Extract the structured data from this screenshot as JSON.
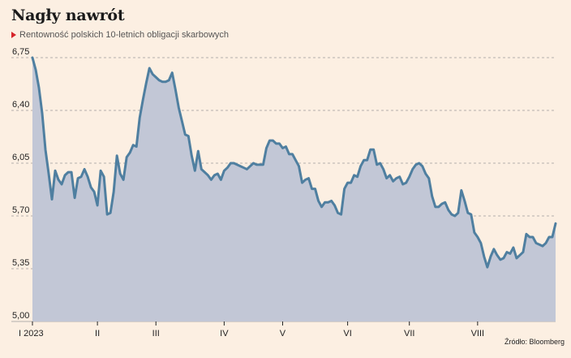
{
  "title": "Nagły nawrót",
  "subtitle": "Rentowność polskich 10-letnich obligacji skarbowych",
  "source": "Źródło: Bloomberg",
  "colors": {
    "background": "#fcefe2",
    "area_fill": "#c2c7d6",
    "line": "#4f7fa0",
    "grid": "#9a9a9a",
    "marker": "#d6232a"
  },
  "chart_data": {
    "type": "area",
    "title": "Nagły nawrót",
    "subtitle": "Rentowność polskich 10-letnich obligacji skarbowych",
    "xlabel": "",
    "ylabel": "",
    "ylim": [
      5.0,
      6.75
    ],
    "yticks": [
      "6,75",
      "6,40",
      "6,05",
      "5,70",
      "5,35",
      "5,00"
    ],
    "ytick_values": [
      6.75,
      6.4,
      6.05,
      5.7,
      5.35,
      5.0
    ],
    "xticks": [
      "I 2023",
      "II",
      "III",
      "IV",
      "V",
      "VI",
      "VII",
      "VIII"
    ],
    "xtick_positions": [
      0,
      20,
      38,
      59,
      77,
      97,
      116,
      137
    ],
    "grid": "horizontal dashed",
    "series": [
      {
        "values": [
          6.75,
          6.67,
          6.55,
          6.38,
          6.14,
          5.98,
          5.81,
          6.0,
          5.94,
          5.91,
          5.97,
          5.99,
          5.99,
          5.82,
          5.95,
          5.96,
          6.01,
          5.96,
          5.89,
          5.86,
          5.77,
          6.0,
          5.96,
          5.71,
          5.72,
          5.86,
          6.1,
          5.98,
          5.94,
          6.09,
          6.12,
          6.17,
          6.16,
          6.35,
          6.47,
          6.58,
          6.68,
          6.64,
          6.62,
          6.6,
          6.59,
          6.59,
          6.6,
          6.65,
          6.54,
          6.42,
          6.33,
          6.24,
          6.23,
          6.1,
          6.0,
          6.13,
          6.01,
          5.99,
          5.97,
          5.94,
          5.97,
          5.98,
          5.94,
          6.0,
          6.02,
          6.05,
          6.05,
          6.04,
          6.03,
          6.02,
          6.01,
          6.03,
          6.05,
          6.04,
          6.04,
          6.04,
          6.15,
          6.2,
          6.2,
          6.18,
          6.18,
          6.15,
          6.16,
          6.11,
          6.11,
          6.07,
          6.03,
          5.92,
          5.94,
          5.95,
          5.88,
          5.88,
          5.8,
          5.76,
          5.79,
          5.79,
          5.8,
          5.77,
          5.72,
          5.71,
          5.88,
          5.92,
          5.92,
          5.97,
          5.96,
          6.03,
          6.07,
          6.07,
          6.14,
          6.14,
          6.04,
          6.05,
          6.01,
          5.95,
          5.97,
          5.93,
          5.95,
          5.96,
          5.91,
          5.92,
          5.96,
          6.01,
          6.04,
          6.05,
          6.03,
          5.98,
          5.95,
          5.83,
          5.76,
          5.76,
          5.78,
          5.79,
          5.74,
          5.71,
          5.7,
          5.72,
          5.87,
          5.8,
          5.72,
          5.71,
          5.59,
          5.56,
          5.52,
          5.43,
          5.36,
          5.43,
          5.48,
          5.44,
          5.41,
          5.42,
          5.46,
          5.45,
          5.49,
          5.42,
          5.44,
          5.46,
          5.58,
          5.56,
          5.56,
          5.52,
          5.51,
          5.5,
          5.52,
          5.56,
          5.56,
          5.65
        ]
      }
    ]
  }
}
